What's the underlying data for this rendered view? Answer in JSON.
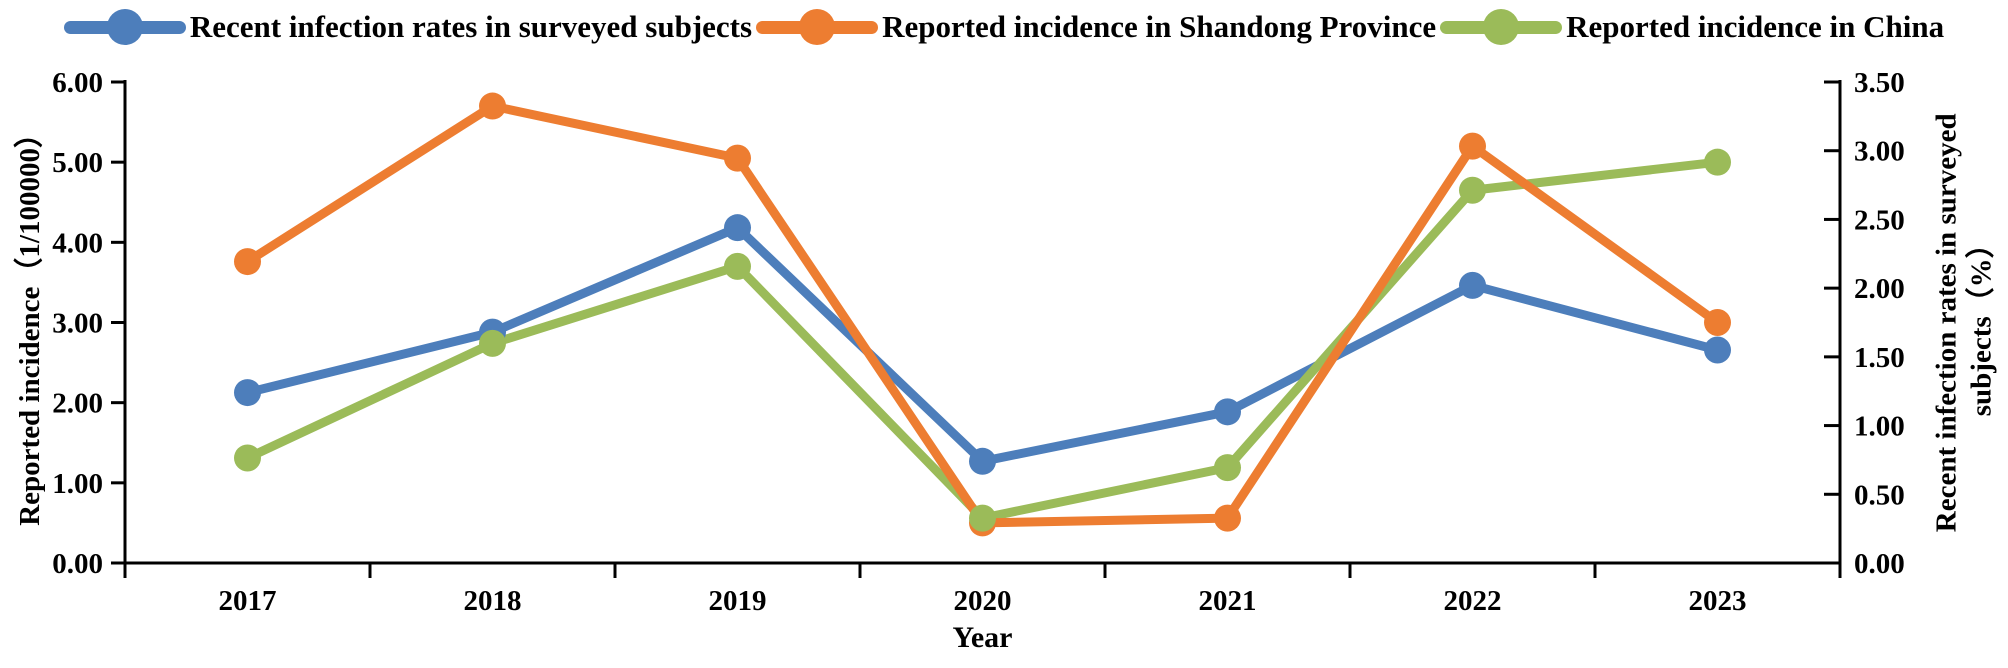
{
  "chart_data": {
    "type": "line",
    "categories": [
      "2017",
      "2018",
      "2019",
      "2020",
      "2021",
      "2022",
      "2023"
    ],
    "series": [
      {
        "name": "Recent infection rates in surveyed subjects",
        "color": "#4d7ebb",
        "axis": "right",
        "values": [
          1.24,
          1.68,
          2.44,
          0.74,
          1.1,
          2.02,
          1.55
        ]
      },
      {
        "name": "Reported incidence in Shandong Province",
        "color": "#ed7d31",
        "axis": "left",
        "values": [
          3.76,
          5.7,
          5.05,
          0.5,
          0.56,
          5.2,
          3.0
        ]
      },
      {
        "name": "Reported incidence in China",
        "color": "#9bbb59",
        "axis": "left",
        "values": [
          1.31,
          2.74,
          3.7,
          0.56,
          1.19,
          4.65,
          5.0
        ]
      }
    ],
    "left_axis": {
      "label": "Reported incidence（1/100000）",
      "tick_labels": [
        "6.00",
        "5.00",
        "4.00",
        "3.00",
        "2.00",
        "1.00",
        "0.00"
      ],
      "range": [
        0,
        6
      ]
    },
    "right_axis": {
      "label_line1": "Recent infection rates in surveyed",
      "label_line2": "subjects（%）",
      "tick_labels": [
        "3.50",
        "3.00",
        "2.50",
        "2.00",
        "1.50",
        "1.00",
        "0.50",
        "0.00"
      ],
      "range": [
        0,
        3.5
      ]
    },
    "x_axis": {
      "label": "Year"
    },
    "legend_position": "top",
    "grid": false
  }
}
